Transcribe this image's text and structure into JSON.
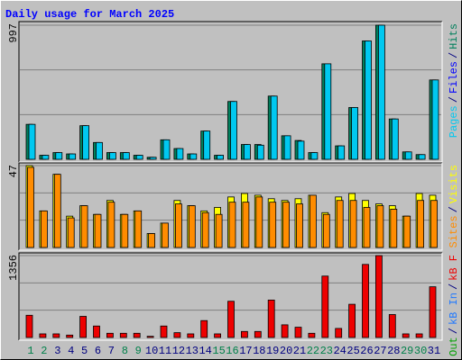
{
  "title": "Daily usage for March 2025",
  "legend_separator": "/",
  "label_color": "#000080",
  "highlight_color": "#00804a",
  "highlighted_categories": [
    1,
    2,
    8,
    9,
    15,
    16,
    22,
    23,
    29,
    30
  ],
  "chart_data": [
    {
      "type": "bar",
      "ylim": [
        0,
        997
      ],
      "yticks": [
        997
      ],
      "series": [
        {
          "name": "Hits",
          "color": "#00805c",
          "values": [
            260,
            30,
            50,
            40,
            250,
            125,
            50,
            50,
            30,
            15,
            145,
            80,
            40,
            210,
            30,
            430,
            110,
            110,
            470,
            175,
            140,
            50,
            710,
            100,
            385,
            880,
            997,
            300,
            55,
            35,
            590
          ]
        },
        {
          "name": "Files",
          "color": "#0000ff",
          "values": [
            null,
            null,
            null,
            null,
            null,
            null,
            null,
            null,
            null,
            null,
            null,
            null,
            null,
            null,
            null,
            null,
            null,
            null,
            null,
            null,
            null,
            null,
            null,
            null,
            null,
            null,
            null,
            null,
            null,
            null,
            null
          ]
        },
        {
          "name": "Pages",
          "color": "#00c8f0",
          "values": [
            260,
            30,
            50,
            40,
            250,
            125,
            50,
            50,
            30,
            15,
            145,
            80,
            40,
            210,
            30,
            430,
            110,
            105,
            470,
            175,
            135,
            50,
            710,
            100,
            385,
            880,
            997,
            300,
            55,
            35,
            590
          ]
        }
      ]
    },
    {
      "type": "bar",
      "ylim": [
        0,
        47
      ],
      "yticks": [
        47
      ],
      "series": [
        {
          "name": "Visits",
          "color": "#ffff00",
          "values": [
            47,
            21,
            42,
            18,
            24,
            19,
            27,
            19,
            21,
            8,
            14,
            27,
            24,
            21,
            23,
            29,
            31,
            30,
            28,
            27,
            28,
            30,
            20,
            29,
            31,
            27,
            25,
            24,
            18,
            31,
            30
          ]
        },
        {
          "name": "Sites",
          "color": "#ff8c00",
          "values": [
            46,
            21,
            42,
            17,
            24,
            19,
            26,
            19,
            21,
            8,
            14,
            25,
            24,
            20,
            19,
            26,
            26,
            29,
            26,
            26,
            25,
            30,
            19,
            27,
            27,
            23,
            24,
            22,
            18,
            27,
            27
          ]
        }
      ]
    },
    {
      "type": "bar",
      "ylim": [
        0,
        1356
      ],
      "yticks": [
        1356
      ],
      "categories": [
        1,
        2,
        3,
        4,
        5,
        6,
        7,
        8,
        9,
        10,
        11,
        12,
        13,
        14,
        15,
        16,
        17,
        18,
        19,
        20,
        21,
        22,
        23,
        24,
        25,
        26,
        27,
        28,
        29,
        30,
        31
      ],
      "series": [
        {
          "name": "kB F",
          "color": "#ee0000",
          "values": [
            368,
            60,
            60,
            40,
            350,
            190,
            70,
            70,
            70,
            20,
            190,
            80,
            60,
            280,
            60,
            600,
            100,
            100,
            620,
            210,
            170,
            70,
            1017,
            150,
            550,
            1210,
            1356,
            380,
            60,
            60,
            840
          ]
        },
        {
          "name": "kB In",
          "color": "#1e78ff",
          "values": [
            null,
            null,
            null,
            null,
            null,
            null,
            null,
            null,
            null,
            null,
            null,
            null,
            null,
            null,
            null,
            null,
            null,
            null,
            null,
            null,
            null,
            null,
            null,
            null,
            null,
            null,
            null,
            null,
            null,
            null,
            null
          ]
        },
        {
          "name": "kB Out",
          "color": "#00a000",
          "values": [
            null,
            null,
            null,
            null,
            null,
            null,
            null,
            null,
            null,
            null,
            null,
            null,
            null,
            null,
            null,
            null,
            null,
            null,
            null,
            null,
            null,
            null,
            null,
            null,
            null,
            null,
            null,
            null,
            null,
            null,
            null
          ]
        }
      ]
    }
  ]
}
